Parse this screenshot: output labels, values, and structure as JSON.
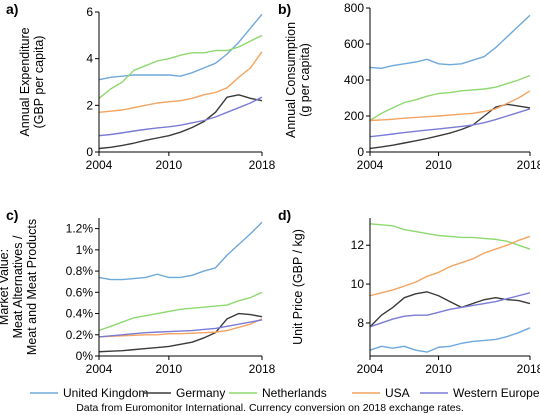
{
  "figure": {
    "note": "Data from Euromonitor International. Currency conversion on 2018 exchange rates."
  },
  "legend": [
    {
      "name": "United Kingdom",
      "color": "#6fa8dc"
    },
    {
      "name": "Germany",
      "color": "#3a3a3a"
    },
    {
      "name": "Netherlands",
      "color": "#8fd86f"
    },
    {
      "name": "USA",
      "color": "#f4a460"
    },
    {
      "name": "Western Europe",
      "color": "#7b7bd6"
    }
  ],
  "chart_data": [
    {
      "panel": "a)",
      "type": "line",
      "ylabel_lines": [
        "Annual Expenditure",
        "(GBP per capita)"
      ],
      "xlim": [
        2004,
        2018
      ],
      "ylim": [
        0,
        6
      ],
      "xticks": [
        2004,
        2010,
        2018
      ],
      "xtick_labels": [
        "2004",
        "2010",
        "2018"
      ],
      "yticks": [
        0,
        2,
        4,
        6
      ],
      "ytick_labels": [
        "0",
        "2",
        "4",
        "6"
      ],
      "x": [
        2004,
        2005,
        2006,
        2007,
        2008,
        2009,
        2010,
        2011,
        2012,
        2013,
        2014,
        2015,
        2016,
        2017,
        2018
      ],
      "series": [
        {
          "name": "United Kingdom",
          "values": [
            3.1,
            3.2,
            3.25,
            3.3,
            3.3,
            3.3,
            3.3,
            3.25,
            3.4,
            3.6,
            3.8,
            4.2,
            4.7,
            5.3,
            5.9
          ]
        },
        {
          "name": "Germany",
          "values": [
            0.15,
            0.2,
            0.28,
            0.38,
            0.5,
            0.6,
            0.7,
            0.85,
            1.05,
            1.3,
            1.7,
            2.35,
            2.45,
            2.3,
            2.2
          ]
        },
        {
          "name": "Netherlands",
          "values": [
            2.3,
            2.7,
            3.0,
            3.5,
            3.7,
            3.9,
            4.0,
            4.15,
            4.25,
            4.25,
            4.35,
            4.35,
            4.5,
            4.75,
            5.0
          ]
        },
        {
          "name": "USA",
          "values": [
            1.7,
            1.75,
            1.8,
            1.9,
            2.0,
            2.1,
            2.15,
            2.2,
            2.3,
            2.45,
            2.55,
            2.75,
            3.2,
            3.6,
            4.3
          ]
        },
        {
          "name": "Western Europe",
          "values": [
            0.7,
            0.75,
            0.82,
            0.9,
            0.97,
            1.03,
            1.08,
            1.15,
            1.25,
            1.35,
            1.5,
            1.7,
            1.9,
            2.1,
            2.35
          ]
        }
      ]
    },
    {
      "panel": "b)",
      "type": "line",
      "ylabel_lines": [
        "Annual Consumption",
        "(g per capita)"
      ],
      "xlim": [
        2004,
        2018
      ],
      "ylim": [
        0,
        800
      ],
      "xticks": [
        2004,
        2010,
        2018
      ],
      "xtick_labels": [
        "2004",
        "2010",
        "2018"
      ],
      "yticks": [
        0,
        200,
        400,
        600,
        800
      ],
      "ytick_labels": [
        "0",
        "200",
        "400",
        "600",
        "800"
      ],
      "x": [
        2004,
        2005,
        2006,
        2007,
        2008,
        2009,
        2010,
        2011,
        2012,
        2013,
        2014,
        2015,
        2016,
        2017,
        2018
      ],
      "series": [
        {
          "name": "United Kingdom",
          "values": [
            470,
            465,
            480,
            490,
            500,
            515,
            490,
            485,
            490,
            510,
            530,
            580,
            640,
            700,
            760
          ]
        },
        {
          "name": "Germany",
          "values": [
            20,
            28,
            38,
            50,
            62,
            75,
            90,
            105,
            125,
            150,
            200,
            250,
            265,
            255,
            245
          ]
        },
        {
          "name": "Netherlands",
          "values": [
            175,
            215,
            245,
            275,
            290,
            310,
            325,
            330,
            340,
            345,
            350,
            360,
            380,
            400,
            425
          ]
        },
        {
          "name": "USA",
          "values": [
            175,
            178,
            182,
            188,
            192,
            196,
            200,
            205,
            210,
            215,
            225,
            240,
            270,
            300,
            340
          ]
        },
        {
          "name": "Western Europe",
          "values": [
            85,
            92,
            100,
            108,
            115,
            122,
            128,
            135,
            142,
            150,
            163,
            180,
            200,
            220,
            240
          ]
        }
      ]
    },
    {
      "panel": "c)",
      "type": "line",
      "ylabel_lines": [
        "Market Value:",
        "Meat Alternatives /",
        "Meat and Meat Products"
      ],
      "xlim": [
        2004,
        2018
      ],
      "ylim": [
        0,
        1.3
      ],
      "xticks": [
        2004,
        2010,
        2018
      ],
      "xtick_labels": [
        "2004",
        "2010",
        "2018"
      ],
      "yticks": [
        0,
        0.2,
        0.4,
        0.6,
        0.8,
        1.0,
        1.2
      ],
      "ytick_labels": [
        "0%",
        "0.2%",
        "0.4%",
        "0.6%",
        "0.8%",
        "1%",
        "1.2%"
      ],
      "x": [
        2004,
        2005,
        2006,
        2007,
        2008,
        2009,
        2010,
        2011,
        2012,
        2013,
        2014,
        2015,
        2016,
        2017,
        2018
      ],
      "series": [
        {
          "name": "United Kingdom",
          "values": [
            0.74,
            0.72,
            0.72,
            0.73,
            0.74,
            0.77,
            0.74,
            0.74,
            0.76,
            0.8,
            0.83,
            0.95,
            1.05,
            1.15,
            1.26
          ]
        },
        {
          "name": "Germany",
          "values": [
            0.04,
            0.045,
            0.05,
            0.06,
            0.07,
            0.08,
            0.09,
            0.11,
            0.13,
            0.17,
            0.22,
            0.35,
            0.4,
            0.39,
            0.37
          ]
        },
        {
          "name": "Netherlands",
          "values": [
            0.24,
            0.28,
            0.32,
            0.36,
            0.38,
            0.4,
            0.42,
            0.44,
            0.45,
            0.46,
            0.47,
            0.48,
            0.52,
            0.55,
            0.6
          ]
        },
        {
          "name": "USA",
          "values": [
            0.18,
            0.185,
            0.19,
            0.195,
            0.2,
            0.2,
            0.21,
            0.21,
            0.215,
            0.22,
            0.225,
            0.24,
            0.27,
            0.3,
            0.35
          ]
        },
        {
          "name": "Western Europe",
          "values": [
            0.18,
            0.19,
            0.2,
            0.21,
            0.22,
            0.225,
            0.23,
            0.235,
            0.24,
            0.25,
            0.26,
            0.28,
            0.3,
            0.32,
            0.34
          ]
        }
      ]
    },
    {
      "panel": "d)",
      "type": "line",
      "ylabel_lines": [
        "Unit Price (GBP / kg)"
      ],
      "xlim": [
        2004,
        2018
      ],
      "ylim": [
        6.3,
        13.4
      ],
      "xticks": [
        2004,
        2010,
        2018
      ],
      "xtick_labels": [
        "2004",
        "2010",
        "2018"
      ],
      "yticks": [
        8,
        10,
        12
      ],
      "ytick_labels": [
        "8",
        "10",
        "12"
      ],
      "x": [
        2004,
        2005,
        2006,
        2007,
        2008,
        2009,
        2010,
        2011,
        2012,
        2013,
        2014,
        2015,
        2016,
        2017,
        2018
      ],
      "series": [
        {
          "name": "United Kingdom",
          "values": [
            6.6,
            6.8,
            6.7,
            6.8,
            6.6,
            6.5,
            6.75,
            6.8,
            6.95,
            7.05,
            7.1,
            7.15,
            7.3,
            7.5,
            7.75
          ]
        },
        {
          "name": "Germany",
          "values": [
            7.8,
            8.4,
            8.8,
            9.3,
            9.5,
            9.6,
            9.4,
            9.1,
            8.8,
            9.0,
            9.2,
            9.3,
            9.2,
            9.15,
            9.0
          ]
        },
        {
          "name": "Netherlands",
          "values": [
            13.1,
            13.05,
            13.0,
            12.8,
            12.7,
            12.6,
            12.5,
            12.45,
            12.4,
            12.4,
            12.35,
            12.3,
            12.2,
            12.0,
            11.8
          ]
        },
        {
          "name": "USA",
          "values": [
            9.4,
            9.55,
            9.7,
            9.9,
            10.1,
            10.4,
            10.6,
            10.9,
            11.1,
            11.3,
            11.6,
            11.8,
            12.0,
            12.25,
            12.45
          ]
        },
        {
          "name": "Western Europe",
          "values": [
            7.8,
            8.0,
            8.2,
            8.35,
            8.4,
            8.4,
            8.55,
            8.7,
            8.8,
            8.9,
            9.0,
            9.1,
            9.25,
            9.4,
            9.55
          ]
        }
      ]
    }
  ]
}
